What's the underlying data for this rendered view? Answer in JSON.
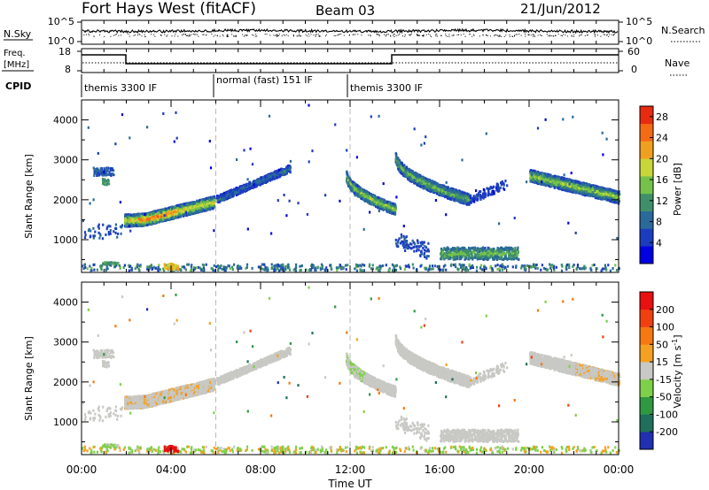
{
  "header": {
    "station": "Fort Hays West (fitACF)",
    "beam": "Beam 03",
    "date": "21/Jun/2012"
  },
  "noise_panel": {
    "left_label": "N.Sky",
    "right_label": "N.Search",
    "left_ticks": [
      "10^5",
      "10^0"
    ],
    "right_ticks": [
      "10^5",
      "10^0"
    ]
  },
  "freq_panel": {
    "left_label_1": "Freq.",
    "left_label_2": "[MHz]",
    "left_ticks": [
      "18",
      "8"
    ],
    "right_ticks": [
      "60",
      "0"
    ],
    "right_label": "Nave",
    "cpid_label": "CPID",
    "segments": [
      {
        "start_hour": 0,
        "end_hour": 6,
        "label": "themis 3300 IF"
      },
      {
        "start_hour": 6,
        "end_hour": 12,
        "label": "normal (fast) 151 IF"
      },
      {
        "start_hour": 12,
        "end_hour": 24,
        "label": "themis 3300 IF"
      }
    ]
  },
  "colors": {
    "background": "#ffffff",
    "axis": "#000000",
    "ground_scatter": "#c8c8c4"
  },
  "chart_data": [
    {
      "type": "heatmap",
      "quantity": "power",
      "ylabel": "Slant Range [km]",
      "ylim": [
        180,
        4500
      ],
      "yticks": [
        "1000",
        "2000",
        "3000",
        "4000"
      ],
      "xlim_hours": [
        0,
        24
      ],
      "colorbar": {
        "label": "Power [dB]",
        "ticks": [
          "4",
          "8",
          "12",
          "16",
          "20",
          "24",
          "28"
        ],
        "range": [
          0,
          30
        ],
        "colors": [
          "#0000e0",
          "#1c3cc0",
          "#2a6a9a",
          "#3f8f6a",
          "#74c24a",
          "#c8d63a",
          "#f0a020",
          "#f56a14",
          "#e82a10"
        ]
      },
      "features": [
        {
          "name": "main arc",
          "t_hours": [
            1.9,
            5.9
          ],
          "range_km": [
            1450,
            2000
          ],
          "power_db": 17
        },
        {
          "name": "pre-midnight arc",
          "t_hours": [
            6.0,
            9.3
          ],
          "range_km": [
            2000,
            2780
          ],
          "power_db": 6
        },
        {
          "name": "post-noon arc",
          "t_hours": [
            11.8,
            14.0
          ],
          "range_km": [
            2600,
            1800
          ],
          "power_db": 11
        },
        {
          "name": "afternoon band",
          "t_hours": [
            14.0,
            17.3
          ],
          "range_km": [
            3200,
            2000
          ],
          "power_db": 12
        },
        {
          "name": "evening band",
          "t_hours": [
            20.0,
            24.0
          ],
          "range_km": [
            2700,
            2000
          ],
          "power_db": 13
        },
        {
          "name": "near-range echoes",
          "t_hours": [
            16.0,
            19.5
          ],
          "range_km": [
            400,
            800
          ],
          "power_db": 10
        }
      ]
    },
    {
      "type": "heatmap",
      "quantity": "velocity",
      "ylabel": "Slant Range [km]",
      "ylim": [
        180,
        4500
      ],
      "yticks": [
        "1000",
        "2000",
        "3000",
        "4000"
      ],
      "xlim_hours": [
        0,
        24
      ],
      "xlabel": "Time UT",
      "xticks": [
        "00:00",
        "04:00",
        "08:00",
        "12:00",
        "16:00",
        "20:00",
        "00:00"
      ],
      "colorbar": {
        "label_main": "Velocity [m s",
        "label_sup": "-1",
        "label_end": "]",
        "ticks": [
          "200",
          "100",
          "50",
          "15",
          "-15",
          "-50",
          "-100",
          "-200"
        ],
        "range": [
          -250,
          250
        ],
        "colors": [
          "#2030b0",
          "#1f6f5a",
          "#2e9940",
          "#7ed04a",
          "#c8c8c4",
          "#f5a020",
          "#f57810",
          "#f04010",
          "#e81010"
        ]
      }
    }
  ]
}
